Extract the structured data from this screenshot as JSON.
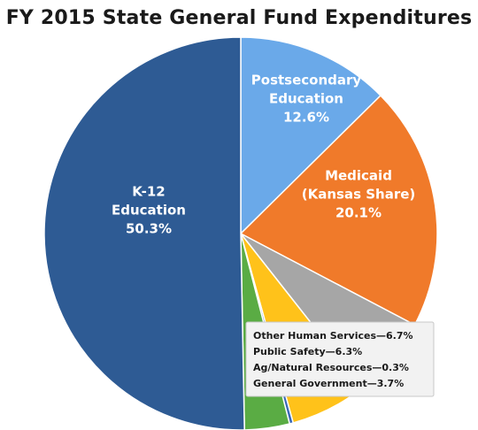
{
  "chart_data": {
    "type": "pie",
    "title": "FY 2015 State General Fund Expenditures",
    "slices": [
      {
        "name": "Postsecondary Education",
        "label_lines": [
          "Postsecondary",
          "Education",
          "12.6%"
        ],
        "value": 12.6,
        "color": "#6aa9e9"
      },
      {
        "name": "Medicaid (Kansas Share)",
        "label_lines": [
          "Medicaid",
          "(Kansas Share)",
          "20.1%"
        ],
        "value": 20.1,
        "color": "#f07a2a"
      },
      {
        "name": "Other Human Services",
        "label_lines": [],
        "value": 6.7,
        "color": "#a6a6a6"
      },
      {
        "name": "Public Safety",
        "label_lines": [],
        "value": 6.3,
        "color": "#ffc21a"
      },
      {
        "name": "Ag/Natural Resources",
        "label_lines": [],
        "value": 0.3,
        "color": "#3a68b8"
      },
      {
        "name": "General Government",
        "label_lines": [],
        "value": 3.7,
        "color": "#5aac44"
      },
      {
        "name": "K-12 Education",
        "label_lines": [
          "K-12",
          "Education",
          "50.3%"
        ],
        "value": 50.3,
        "color": "#2e5b94"
      }
    ],
    "legend": [
      "Other Human Services—6.7%",
      "Public Safety—6.3%",
      "Ag/Natural Resources—0.3%",
      "General Government—3.7%"
    ]
  }
}
